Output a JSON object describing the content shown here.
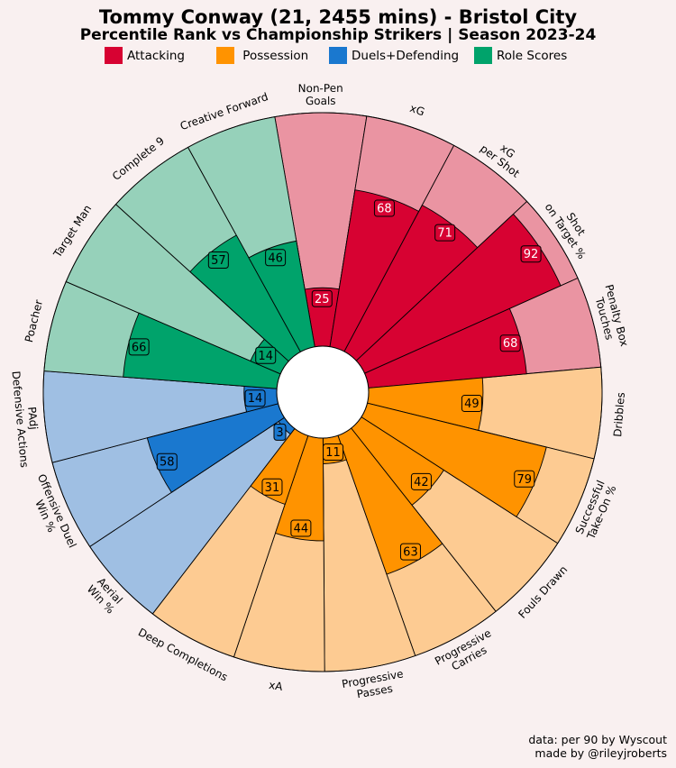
{
  "header": {
    "title": "Tommy Conway (21, 2455 mins) - Bristol City",
    "subtitle": "Percentile Rank vs Championship Strikers | Season 2023-24"
  },
  "legend": [
    {
      "label": "Attacking",
      "color": "#d70232"
    },
    {
      "label": " Possession",
      "color": "#ff9300"
    },
    {
      "label": "Duels+Defending",
      "color": "#1a78cf"
    },
    {
      "label": "Role Scores",
      "color": "#00a36b"
    }
  ],
  "footer": {
    "line1": "data: per 90 by Wyscout",
    "line2": "made by @rileyjroberts"
  },
  "chart_data": {
    "type": "radial_bar",
    "rlim": [
      0,
      100
    ],
    "categories": [
      "Non-Pen\nGoals",
      "xG",
      "xG\nper Shot",
      "Shot\non Target %",
      "Penalty Box\nTouches",
      "Dribbles",
      "Successful\nTake-On %",
      "Fouls Drawn",
      "Progressive\nCarries",
      "Progressive\nPasses",
      "xA",
      "Deep Completions",
      "Aerial\nWin %",
      "Offensive Duel\nWin %",
      "PAdj\nDefensive Actions",
      "Poacher",
      "Target Man",
      "Complete 9",
      "Creative Forward"
    ],
    "groups": [
      "Attacking",
      "Attacking",
      "Attacking",
      "Attacking",
      "Attacking",
      "Possession",
      "Possession",
      "Possession",
      "Possession",
      "Possession",
      "Possession",
      "Possession",
      "Duels+Defending",
      "Duels+Defending",
      "Duels+Defending",
      "Role Scores",
      "Role Scores",
      "Role Scores",
      "Role Scores"
    ],
    "values": [
      25,
      68,
      71,
      92,
      68,
      49,
      79,
      42,
      63,
      11,
      44,
      31,
      3,
      58,
      14,
      66,
      14,
      57,
      46
    ],
    "colors": {
      "Attacking": {
        "dark": "#d70232",
        "light": "#ea94a2"
      },
      "Possession": {
        "dark": "#ff9300",
        "light": "#fdcb92"
      },
      "Duels+Defending": {
        "dark": "#1a78cf",
        "light": "#9fbfe3"
      },
      "Role Scores": {
        "dark": "#00a36b",
        "light": "#96d1ba"
      }
    },
    "label_text_colors": {
      "Attacking": "#ffffff",
      "Possession": "#000000",
      "Duels+Defending": "#000000",
      "Role Scores": "#000000"
    }
  }
}
